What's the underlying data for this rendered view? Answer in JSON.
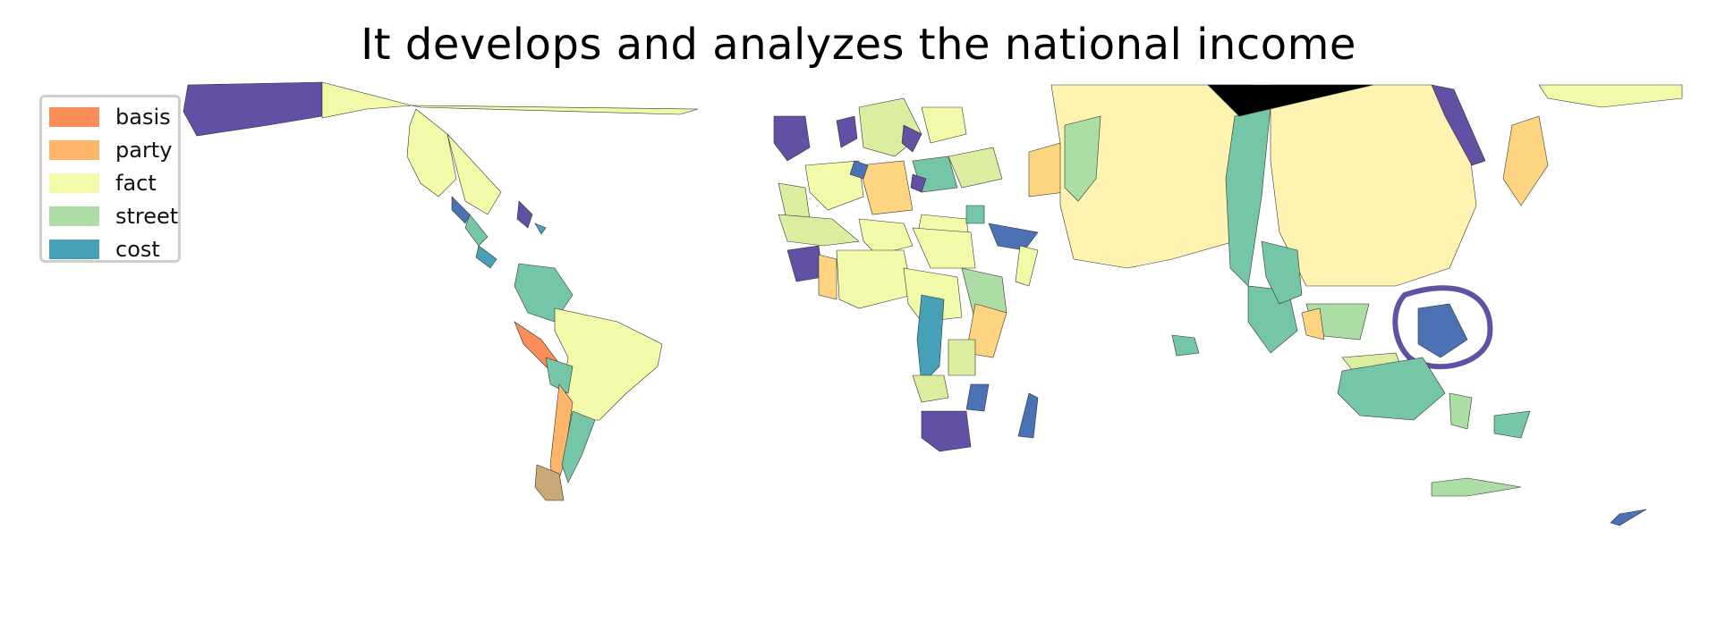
{
  "title": "It develops and analyzes the national income",
  "legend": {
    "items": [
      {
        "label": "basis",
        "color": "#fc8d59"
      },
      {
        "label": "party",
        "color": "#fdb56a"
      },
      {
        "label": "fact",
        "color": "#f2f9a8"
      },
      {
        "label": "street",
        "color": "#abdda4"
      },
      {
        "label": "cost",
        "color": "#46a0b6"
      }
    ]
  },
  "palette": {
    "purple": "#6150a3",
    "blue": "#4a72b4",
    "teal": "#74c6a6",
    "lightyellow": "#fef3b0",
    "orange": "#fdd580",
    "black": "#000000"
  }
}
